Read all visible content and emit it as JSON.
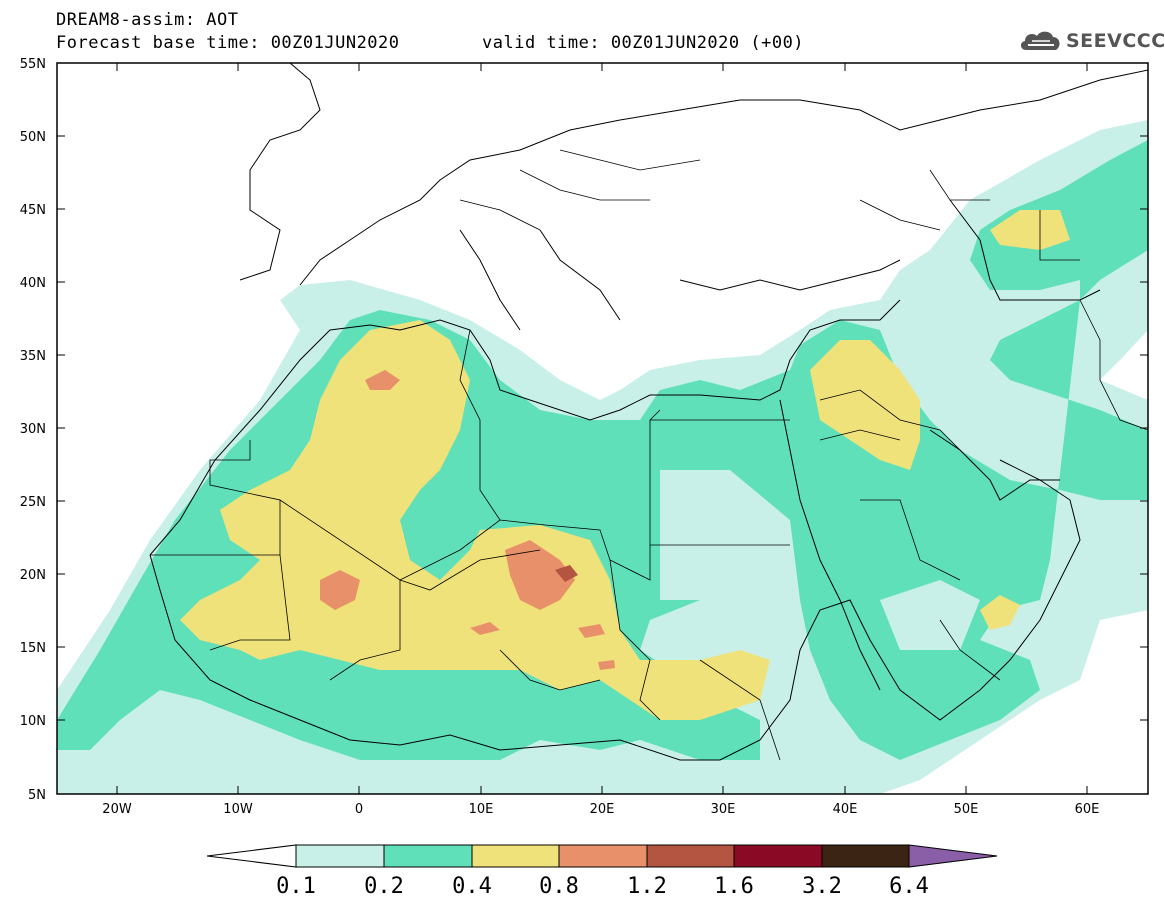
{
  "header": {
    "line1": "DREAM8-assim: AOT",
    "line2": "Forecast base time: 00Z01JUN2020",
    "line3": "valid time: 00Z01JUN2020 (+00)"
  },
  "logo": {
    "text": "SEEVCCC",
    "icon": "cloud-logo-icon",
    "color": "#555555"
  },
  "axes": {
    "lat_ticks": [
      "55N",
      "50N",
      "45N",
      "40N",
      "35N",
      "30N",
      "25N",
      "20N",
      "15N",
      "10N",
      "5N"
    ],
    "lon_ticks": [
      "20W",
      "10W",
      "0",
      "10E",
      "20E",
      "30E",
      "40E",
      "50E",
      "60E"
    ]
  },
  "colorbar": {
    "labels": [
      "0.1",
      "0.2",
      "0.4",
      "0.8",
      "1.2",
      "1.6",
      "3.2",
      "6.4"
    ],
    "colors": [
      "#ffffff",
      "#c8f0e8",
      "#5fe0b8",
      "#f0e27a",
      "#e8906a",
      "#b45542",
      "#8a0a26",
      "#3c2414",
      "#8a5fa8"
    ]
  },
  "map_colors": {
    "ocean_bg": "#ffffff",
    "level1": "#c8f0e8",
    "level2": "#5fe0b8",
    "level3": "#f0e27a",
    "level4": "#e8906a",
    "level5": "#b45542"
  }
}
